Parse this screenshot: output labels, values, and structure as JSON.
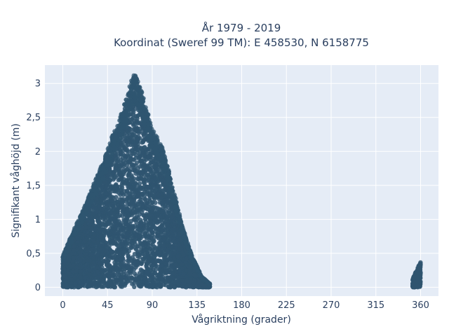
{
  "chart_data": {
    "type": "scatter",
    "title_line1": "År 1979 - 2019",
    "title_line2": "Koordinat (Sweref 99 TM): E 458530, N 6158775",
    "xlabel": "Vågriktning (grader)",
    "ylabel": "Signifikant våghöjd (m)",
    "xlim": [
      -18,
      378
    ],
    "ylim": [
      -0.13,
      3.27
    ],
    "x_ticks": [
      0,
      45,
      90,
      135,
      180,
      225,
      270,
      315,
      360
    ],
    "x_tick_labels": [
      "0",
      "45",
      "90",
      "135",
      "180",
      "225",
      "270",
      "315",
      "360"
    ],
    "y_ticks": [
      0,
      0.5,
      1,
      1.5,
      2,
      2.5,
      3
    ],
    "y_tick_labels": [
      "0",
      "0,5",
      "1",
      "1,5",
      "2",
      "2,5",
      "3"
    ],
    "grid": true,
    "marker_color": "#2f5570",
    "plot_bgcolor": "#e5ecf6",
    "series": [
      {
        "envelope": [
          {
            "x": 0,
            "ymax": 0.45
          },
          {
            "x": 10,
            "ymax": 0.8
          },
          {
            "x": 20,
            "ymax": 1.1
          },
          {
            "x": 30,
            "ymax": 1.45
          },
          {
            "x": 40,
            "ymax": 1.8
          },
          {
            "x": 50,
            "ymax": 2.2
          },
          {
            "x": 60,
            "ymax": 2.55
          },
          {
            "x": 68,
            "ymax": 2.95
          },
          {
            "x": 72,
            "ymax": 3.12
          },
          {
            "x": 80,
            "ymax": 2.8
          },
          {
            "x": 90,
            "ymax": 2.3
          },
          {
            "x": 100,
            "ymax": 2.05
          },
          {
            "x": 110,
            "ymax": 1.5
          },
          {
            "x": 120,
            "ymax": 0.9
          },
          {
            "x": 130,
            "ymax": 0.45
          },
          {
            "x": 140,
            "ymax": 0.15
          },
          {
            "x": 148,
            "ymax": 0.05
          }
        ],
        "cluster": {
          "x_min": 352,
          "x_max": 360,
          "y_max": 0.38
        }
      }
    ]
  }
}
